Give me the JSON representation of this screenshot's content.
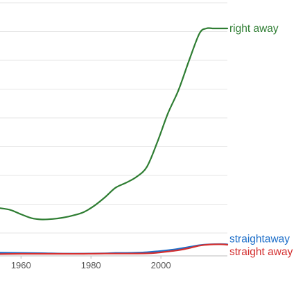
{
  "chart_data": {
    "type": "line",
    "title": "",
    "xlabel": "",
    "ylabel": "",
    "x_ticks": [
      "1960",
      "1980",
      "2000"
    ],
    "xlim": [
      1954,
      2019
    ],
    "ylim": [
      0,
      1.0
    ],
    "grid": true,
    "legend": "series labels at right end of lines",
    "series": [
      {
        "name": "right away",
        "color": "#2e7d32",
        "x": [
          1954,
          1957,
          1960,
          1963,
          1966,
          1969,
          1972,
          1975,
          1978,
          1981,
          1984,
          1987,
          1990,
          1993,
          1996,
          1999,
          2002,
          2005,
          2008,
          2011,
          2013,
          2015,
          2017,
          2019
        ],
        "y": [
          0.205,
          0.197,
          0.178,
          0.161,
          0.155,
          0.157,
          0.163,
          0.173,
          0.188,
          0.216,
          0.253,
          0.295,
          0.317,
          0.343,
          0.388,
          0.498,
          0.624,
          0.726,
          0.856,
          0.977,
          1.0,
          1.0,
          1.0,
          1.0
        ]
      },
      {
        "name": "straightaway",
        "color": "#1e6fc9",
        "x": [
          1954,
          1960,
          1966,
          1972,
          1978,
          1984,
          1987,
          1990,
          1993,
          1996,
          1999,
          2002,
          2005,
          2008,
          2011,
          2014,
          2017,
          2019
        ],
        "y": [
          0.008,
          0.007,
          0.006,
          0.004,
          0.004,
          0.005,
          0.007,
          0.007,
          0.008,
          0.01,
          0.014,
          0.019,
          0.025,
          0.033,
          0.041,
          0.045,
          0.046,
          0.045
        ]
      },
      {
        "name": "straight away",
        "color": "#d32f2f",
        "x": [
          1954,
          1960,
          1966,
          1972,
          1978,
          1984,
          1990,
          1996,
          1999,
          2002,
          2005,
          2008,
          2011,
          2014,
          2017,
          2019
        ],
        "y": [
          0.002,
          0.003,
          0.003,
          0.003,
          0.003,
          0.004,
          0.004,
          0.005,
          0.008,
          0.013,
          0.019,
          0.028,
          0.039,
          0.044,
          0.045,
          0.043
        ]
      }
    ]
  }
}
